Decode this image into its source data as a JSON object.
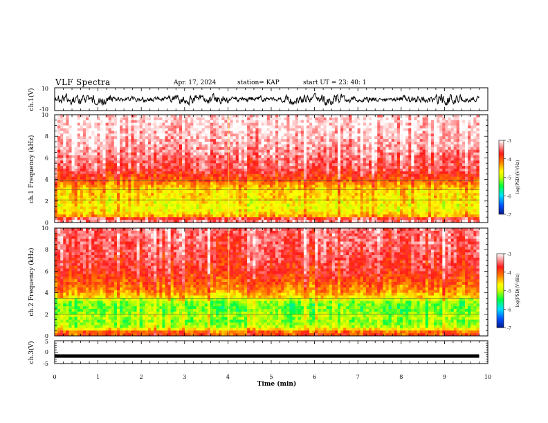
{
  "header": {
    "title": "VLF Spectra",
    "date": "Apr. 17, 2024",
    "station": "station= KAP",
    "start": "start UT =  23: 40: 1"
  },
  "colors": {
    "colormap": [
      "#001a8c",
      "#0050ff",
      "#00e0ff",
      "#00ff40",
      "#c8ff00",
      "#ffff00",
      "#ff8000",
      "#ff1a1a",
      "#ffffff"
    ],
    "trace": "#000000"
  },
  "chart_data": [
    {
      "type": "line",
      "name": "ch1-waveform",
      "ylabel": "ch.1(V)",
      "ytick_labels": [
        "10",
        "-10"
      ],
      "ylim": [
        -10,
        10
      ],
      "xlim": [
        0,
        10
      ],
      "x_extent": [
        0,
        9.8
      ],
      "amplitude_range": [
        -5,
        5
      ]
    },
    {
      "type": "heatmap",
      "name": "ch1-spectrogram",
      "ylabel": "ch.1 Frequency (kHz)",
      "xlim": [
        0,
        10
      ],
      "ylim": [
        0,
        10
      ],
      "yticks": [
        0,
        2,
        4,
        6,
        8,
        10
      ],
      "x_extent": [
        0,
        9.8
      ],
      "colorbar": {
        "label": "log(PSD)(V²/Hz)",
        "range": [
          -7,
          -3
        ],
        "tick_labels": [
          "-3",
          "-4",
          "-5",
          "-6",
          "-7"
        ]
      },
      "profile": [
        {
          "f": 0.3,
          "v": -3.4
        },
        {
          "f": 0.6,
          "v": -4.4
        },
        {
          "f": 1.0,
          "v": -4.7
        },
        {
          "f": 1.5,
          "v": -4.8
        },
        {
          "f": 2.0,
          "v": -4.7
        },
        {
          "f": 2.5,
          "v": -4.6
        },
        {
          "f": 3.0,
          "v": -4.6
        },
        {
          "f": 3.5,
          "v": -4.3
        },
        {
          "f": 4.0,
          "v": -4.0
        },
        {
          "f": 4.5,
          "v": -3.8
        },
        {
          "f": 5.0,
          "v": -3.6
        },
        {
          "f": 6.0,
          "v": -3.45
        },
        {
          "f": 8.0,
          "v": -3.2
        },
        {
          "f": 10.0,
          "v": -3.1
        }
      ],
      "lines_khz": [
        2.1,
        3.05,
        3.9
      ]
    },
    {
      "type": "heatmap",
      "name": "ch2-spectrogram",
      "ylabel": "ch.2 Frequency (kHz)",
      "xlim": [
        0,
        10
      ],
      "ylim": [
        0,
        10
      ],
      "yticks": [
        0,
        2,
        4,
        6,
        8,
        10
      ],
      "x_extent": [
        0,
        9.8
      ],
      "colorbar": {
        "label": "log(PSD)(V²/Hz)",
        "range": [
          -7,
          -3
        ],
        "tick_labels": [
          "-3",
          "-4",
          "-5",
          "-6",
          "-7"
        ]
      },
      "profile": [
        {
          "f": 0.3,
          "v": -4.0
        },
        {
          "f": 0.8,
          "v": -5.0
        },
        {
          "f": 1.3,
          "v": -5.2
        },
        {
          "f": 1.8,
          "v": -5.0
        },
        {
          "f": 2.3,
          "v": -5.25
        },
        {
          "f": 2.8,
          "v": -5.3
        },
        {
          "f": 3.2,
          "v": -5.1
        },
        {
          "f": 3.6,
          "v": -4.6
        },
        {
          "f": 4.2,
          "v": -4.25
        },
        {
          "f": 5.0,
          "v": -4.0
        },
        {
          "f": 6.0,
          "v": -3.75
        },
        {
          "f": 8.0,
          "v": -3.55
        },
        {
          "f": 10.0,
          "v": -3.45
        }
      ],
      "lines_khz": [
        2.0,
        3.5
      ]
    },
    {
      "type": "line",
      "name": "ch3-waveform",
      "ylabel": "ch.3(V)",
      "ytick_labels": [
        "5",
        "0",
        "-5"
      ],
      "ylim": [
        -5,
        5
      ],
      "xlim": [
        0,
        10
      ],
      "x_extent": [
        0,
        9.8
      ],
      "value": -1.7
    }
  ],
  "xaxis": {
    "label": "Time (min)",
    "ticks": [
      0,
      1,
      2,
      3,
      4,
      5,
      6,
      7,
      8,
      9,
      10
    ],
    "tick_labels": [
      "0",
      "1",
      "2",
      "3",
      "4",
      "5",
      "6",
      "7",
      "8",
      "9",
      "10"
    ]
  }
}
